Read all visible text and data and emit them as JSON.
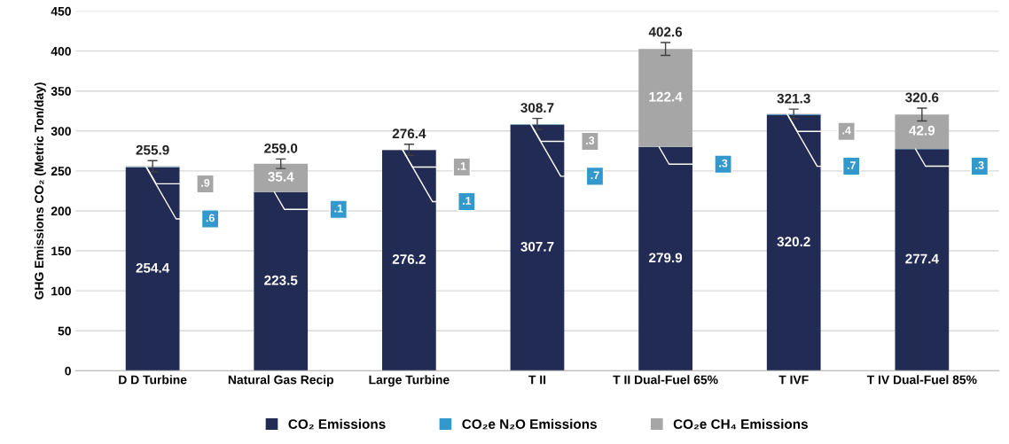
{
  "chart_data": {
    "type": "bar",
    "stacked": true,
    "ylabel": "GHG Emissions CO₂ (Metric Ton/day)",
    "categories": [
      "D D Turbine",
      "Natural Gas Recip",
      "Large Turbine",
      "T II",
      "T II Dual-Fuel 65%",
      "T IVF",
      "T IV Dual-Fuel 85%"
    ],
    "series": [
      {
        "name": "CO₂ Emissions",
        "color": "#222b54",
        "values": [
          254.4,
          223.5,
          276.2,
          307.7,
          279.9,
          320.2,
          277.4
        ],
        "value_labels": [
          "254.4",
          "223.5",
          "276.2",
          "307.7",
          "279.9",
          "320.2",
          "277.4"
        ]
      },
      {
        "name": "CO₂e N₂O Emissions",
        "color": "#3399cc",
        "values": [
          0.6,
          0.1,
          0.1,
          0.7,
          0.3,
          0.7,
          0.3
        ],
        "value_labels": [
          ".6",
          ".1",
          ".1",
          ".7",
          ".3",
          ".7",
          ".3"
        ]
      },
      {
        "name": "CO₂e CH₄ Emissions",
        "color": "#a6a6a6",
        "values": [
          0.9,
          35.4,
          0.1,
          0.3,
          122.4,
          0.4,
          42.9
        ],
        "value_labels": [
          ".9",
          "35.4",
          ".1",
          ".3",
          "122.4",
          ".4",
          "42.9"
        ],
        "errors": [
          7,
          6,
          7,
          7,
          8,
          6,
          8
        ]
      }
    ],
    "totals": [
      "255.9",
      "259.0",
      "276.4",
      "308.7",
      "402.6",
      "321.3",
      "320.6"
    ],
    "ylim": [
      0,
      450
    ],
    "yticks": [
      0,
      50,
      100,
      150,
      200,
      250,
      300,
      350,
      400,
      450
    ],
    "grid": "y",
    "legend": "bottom"
  }
}
